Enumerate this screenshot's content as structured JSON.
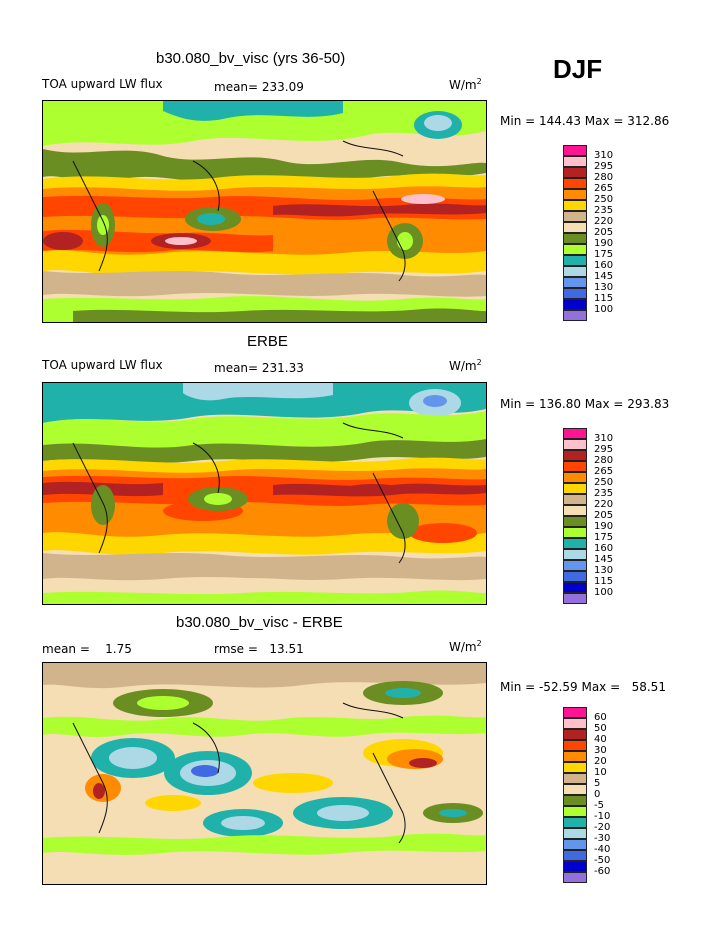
{
  "season": "DJF",
  "units_base": "W/m",
  "units_exp": "2",
  "panels": [
    {
      "title": "b30.080_bv_visc (yrs 36-50)",
      "variable": "TOA upward LW flux",
      "stat": "mean= 233.09",
      "minmax": "Min = 144.43 Max = 312.86"
    },
    {
      "title": "ERBE",
      "variable": "TOA upward LW flux",
      "stat": "mean= 231.33",
      "minmax": "Min = 136.80 Max = 293.83"
    },
    {
      "title": "b30.080_bv_visc - ERBE",
      "variable": "mean =    1.75",
      "stat": "rmse =   13.51",
      "minmax": "Min = -52.59 Max =   58.51"
    }
  ],
  "colorbar_abs": {
    "levels": [
      "310",
      "295",
      "280",
      "265",
      "250",
      "235",
      "220",
      "205",
      "190",
      "175",
      "160",
      "145",
      "130",
      "115",
      "100"
    ],
    "colors": [
      "#ff1493",
      "#ffc0cb",
      "#b22222",
      "#ff4500",
      "#ff8c00",
      "#ffd700",
      "#d2b48c",
      "#f5deb3",
      "#6b8e23",
      "#adff2f",
      "#20b2aa",
      "#add8e6",
      "#6495ed",
      "#4169e1",
      "#0000cd",
      "#9370db"
    ]
  },
  "colorbar_diff": {
    "levels": [
      "60",
      "50",
      "40",
      "30",
      "20",
      "10",
      "5",
      "0",
      "-5",
      "-10",
      "-20",
      "-30",
      "-40",
      "-50",
      "-60"
    ],
    "colors": [
      "#ff1493",
      "#ffc0cb",
      "#b22222",
      "#ff4500",
      "#ff8c00",
      "#ffd700",
      "#d2b48c",
      "#f5deb3",
      "#6b8e23",
      "#adff2f",
      "#20b2aa",
      "#add8e6",
      "#6495ed",
      "#4169e1",
      "#0000cd",
      "#9370db"
    ]
  }
}
